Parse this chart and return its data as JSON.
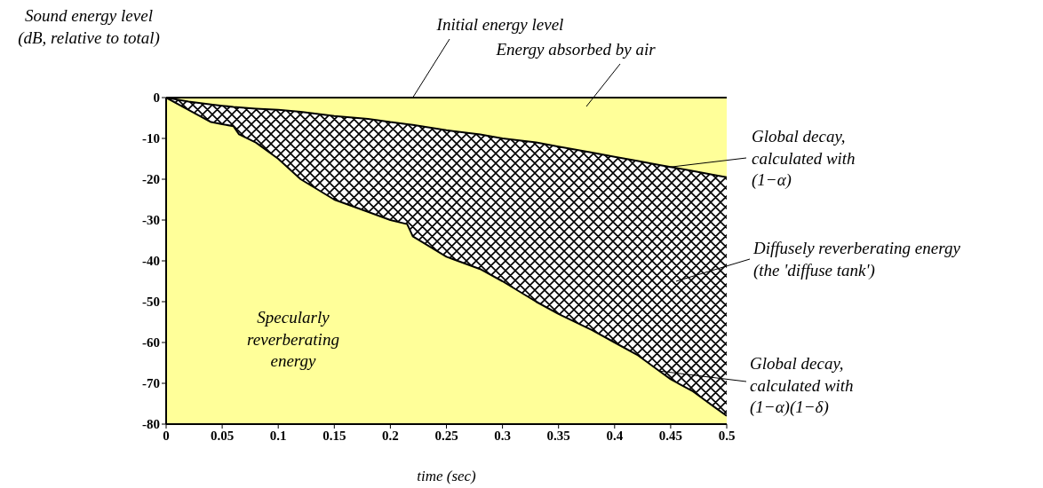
{
  "chart_data": {
    "type": "line",
    "ylabel": "Sound energy level\n(dB, relative to total)",
    "xlabel": "time (sec)",
    "x": [
      0,
      0.02,
      0.04,
      0.05,
      0.06,
      0.065,
      0.08,
      0.1,
      0.12,
      0.15,
      0.18,
      0.2,
      0.215,
      0.22,
      0.25,
      0.28,
      0.3,
      0.33,
      0.35,
      0.38,
      0.4,
      0.42,
      0.44,
      0.45,
      0.47,
      0.49,
      0.5
    ],
    "series": [
      {
        "color": "#000000",
        "values": [
          0,
          -1,
          -1.7,
          -2,
          -2.3,
          -2.4,
          -2.7,
          -3,
          -3.5,
          -4.5,
          -5.2,
          -6,
          -6.5,
          -6.7,
          -8,
          -9,
          -10,
          -11,
          -12,
          -13.5,
          -14.5,
          -15.5,
          -16.5,
          -17,
          -18,
          -19,
          -19.5
        ]
      },
      {
        "color": "#000000",
        "values": [
          0,
          -3,
          -6,
          -6.5,
          -7,
          -9,
          -11,
          -15,
          -20,
          -25,
          -28,
          -30,
          -31,
          -34,
          -39,
          -42,
          -45,
          -50,
          -53,
          -57,
          -60,
          -63,
          -67,
          -69,
          -72,
          -76,
          -78
        ]
      }
    ],
    "bands": [
      {
        "axis": "x",
        "from": 0,
        "to": 0.5,
        "color": "#ffff99"
      }
    ],
    "ref_lines": [
      {
        "axis": "y",
        "value": 0,
        "color": "#000000"
      }
    ],
    "xlim": [
      0,
      0.5
    ],
    "xticks": [
      0,
      0.05,
      0.1,
      0.15,
      0.2,
      0.25,
      0.3,
      0.35,
      0.4,
      0.45,
      0.5
    ],
    "ylim": [
      -80,
      0
    ],
    "yticks": [
      0,
      -10,
      -20,
      -30,
      -40,
      -50,
      -60,
      -70,
      -80
    ],
    "grid": false,
    "legend": false,
    "annotations": [
      {
        "text": "Initial energy level",
        "x": 0.22,
        "y": 0
      },
      "Energy absorbed by air",
      {
        "text": "Global decay,\ncalculated with\n(1−α)",
        "x": 0.45,
        "y": -17
      },
      "Diffusely reverberating energy\n(the 'diffuse tank')",
      {
        "text": "Global decay,\ncalculated with\n(1−α)(1−δ)",
        "x": 0.44,
        "y": -67
      },
      "Specularly\nreverberating\nenergy"
    ]
  }
}
